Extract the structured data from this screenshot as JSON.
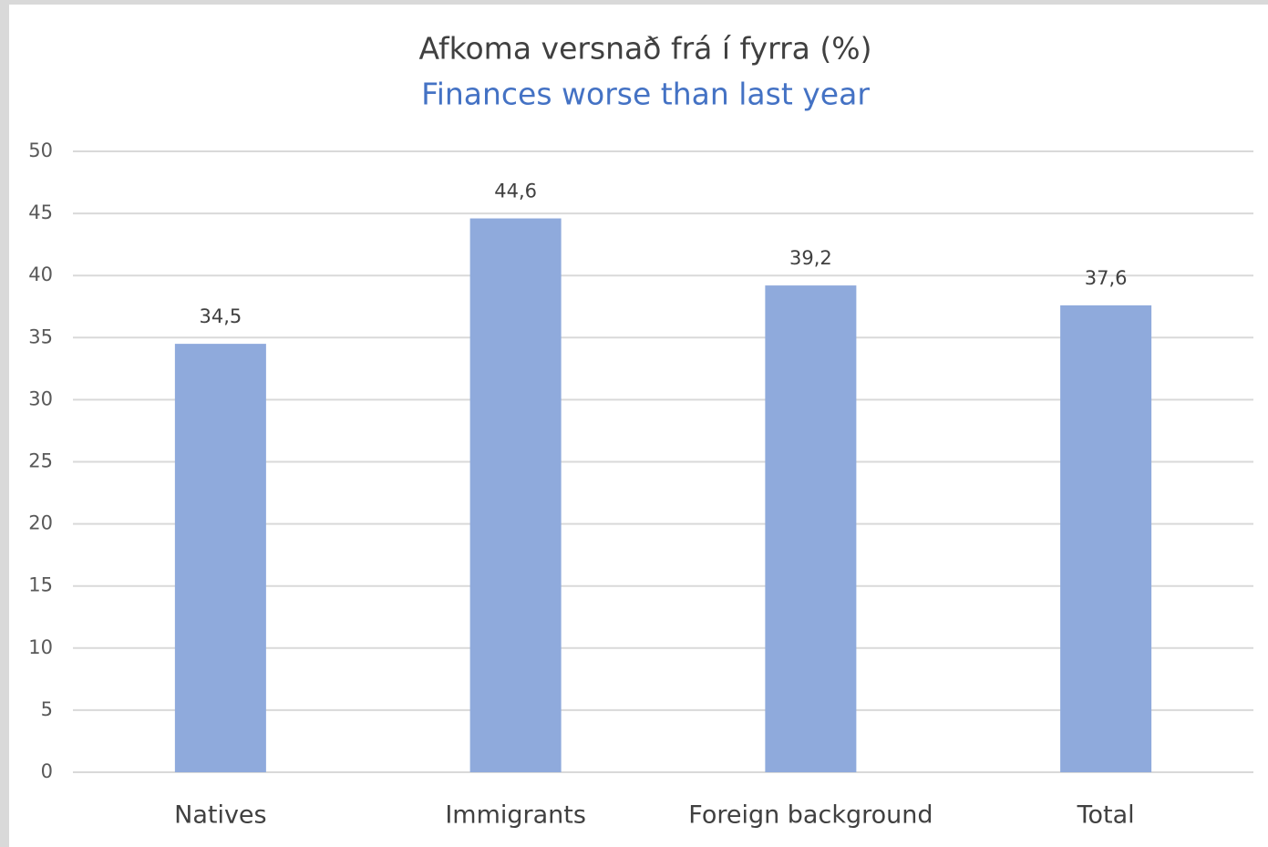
{
  "chart_data": {
    "type": "bar",
    "title": "Afkoma versnað frá í fyrra (%)",
    "subtitle": "Finances worse than last year",
    "categories": [
      "Natives",
      "Immigrants",
      "Foreign background",
      "Total"
    ],
    "values": [
      34.5,
      44.6,
      39.2,
      37.6
    ],
    "value_labels": [
      "34,5",
      "44,6",
      "39,2",
      "37,6"
    ],
    "color": "#8faadc",
    "ylim": [
      0,
      50
    ],
    "yticks": [
      0,
      5,
      10,
      15,
      20,
      25,
      30,
      35,
      40,
      45,
      50
    ],
    "grid": true
  }
}
